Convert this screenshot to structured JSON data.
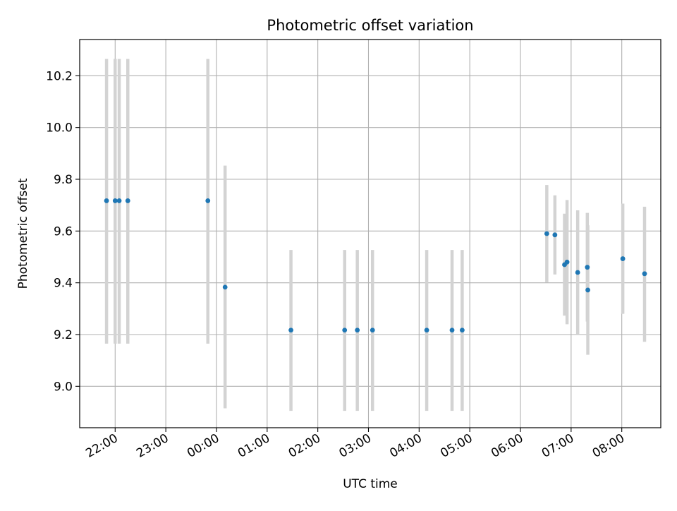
{
  "chart_data": {
    "type": "scatter",
    "title": "Photometric offset variation",
    "xlabel": "UTC time",
    "ylabel": "Photometric offset",
    "x_unit": "UTC time of day (hours; values above 24 are after midnight of the next day)",
    "xlim": [
      21.3,
      32.77
    ],
    "ylim": [
      8.84,
      10.34
    ],
    "grid": true,
    "x_ticks": [
      {
        "value": 22,
        "label": "22:00"
      },
      {
        "value": 23,
        "label": "23:00"
      },
      {
        "value": 24,
        "label": "00:00"
      },
      {
        "value": 25,
        "label": "01:00"
      },
      {
        "value": 26,
        "label": "02:00"
      },
      {
        "value": 27,
        "label": "03:00"
      },
      {
        "value": 28,
        "label": "04:00"
      },
      {
        "value": 29,
        "label": "05:00"
      },
      {
        "value": 30,
        "label": "06:00"
      },
      {
        "value": 31,
        "label": "07:00"
      },
      {
        "value": 32,
        "label": "08:00"
      }
    ],
    "y_ticks": [
      {
        "value": 9.0,
        "label": "9.0"
      },
      {
        "value": 9.2,
        "label": "9.2"
      },
      {
        "value": 9.4,
        "label": "9.4"
      },
      {
        "value": 9.6,
        "label": "9.6"
      },
      {
        "value": 9.8,
        "label": "9.8"
      },
      {
        "value": 10.0,
        "label": "10.0"
      },
      {
        "value": 10.2,
        "label": "10.2"
      }
    ],
    "colors": {
      "point": "#1f77b4",
      "errorbar": "#d3d3d3",
      "grid": "#b0b0b0"
    },
    "points": [
      {
        "x": 21.83,
        "y": 9.717,
        "low": 9.165,
        "high": 10.265
      },
      {
        "x": 22.0,
        "y": 9.717,
        "low": 9.165,
        "high": 10.265
      },
      {
        "x": 22.08,
        "y": 9.717,
        "low": 9.165,
        "high": 10.265
      },
      {
        "x": 22.25,
        "y": 9.717,
        "low": 9.165,
        "high": 10.265
      },
      {
        "x": 23.83,
        "y": 9.717,
        "low": 9.165,
        "high": 10.265
      },
      {
        "x": 24.17,
        "y": 9.383,
        "low": 8.915,
        "high": 9.853
      },
      {
        "x": 25.47,
        "y": 9.217,
        "low": 8.905,
        "high": 9.527
      },
      {
        "x": 26.53,
        "y": 9.217,
        "low": 8.905,
        "high": 9.527
      },
      {
        "x": 26.78,
        "y": 9.217,
        "low": 8.905,
        "high": 9.527
      },
      {
        "x": 27.08,
        "y": 9.217,
        "low": 8.905,
        "high": 9.527
      },
      {
        "x": 28.15,
        "y": 9.217,
        "low": 8.905,
        "high": 9.527
      },
      {
        "x": 28.65,
        "y": 9.217,
        "low": 8.905,
        "high": 9.527
      },
      {
        "x": 28.85,
        "y": 9.217,
        "low": 8.905,
        "high": 9.527
      },
      {
        "x": 30.52,
        "y": 9.59,
        "low": 9.402,
        "high": 9.778
      },
      {
        "x": 30.68,
        "y": 9.585,
        "low": 9.432,
        "high": 9.738
      },
      {
        "x": 30.87,
        "y": 9.47,
        "low": 9.273,
        "high": 9.667
      },
      {
        "x": 30.92,
        "y": 9.48,
        "low": 9.24,
        "high": 9.72
      },
      {
        "x": 31.13,
        "y": 9.44,
        "low": 9.2,
        "high": 9.68
      },
      {
        "x": 31.32,
        "y": 9.46,
        "low": 9.25,
        "high": 9.67
      },
      {
        "x": 31.33,
        "y": 9.372,
        "low": 9.122,
        "high": 9.622
      },
      {
        "x": 32.02,
        "y": 9.493,
        "low": 9.28,
        "high": 9.706
      },
      {
        "x": 32.45,
        "y": 9.435,
        "low": 9.172,
        "high": 9.694
      }
    ]
  }
}
